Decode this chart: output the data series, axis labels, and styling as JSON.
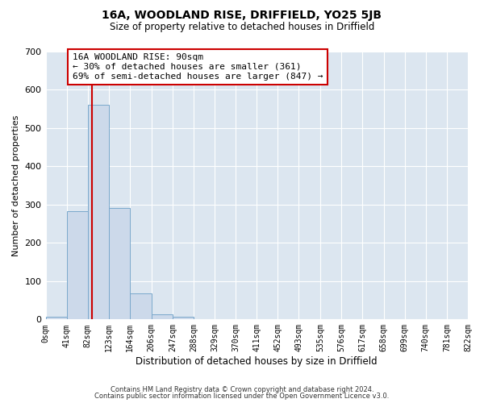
{
  "title": "16A, WOODLAND RISE, DRIFFIELD, YO25 5JB",
  "subtitle": "Size of property relative to detached houses in Driffield",
  "xlabel": "Distribution of detached houses by size in Driffield",
  "ylabel": "Number of detached properties",
  "bin_edges": [
    0,
    41,
    82,
    123,
    164,
    206,
    247,
    288,
    329,
    370,
    411,
    452,
    493,
    535,
    576,
    617,
    658,
    699,
    740,
    781,
    822
  ],
  "bar_heights": [
    8,
    282,
    560,
    292,
    68,
    14,
    8,
    0,
    0,
    0,
    0,
    0,
    0,
    0,
    0,
    0,
    0,
    0,
    0,
    0
  ],
  "bar_color": "#ccd9ea",
  "bar_edge_color": "#7aa8cc",
  "property_line_x": 90,
  "property_line_color": "#cc0000",
  "annotation_text": "16A WOODLAND RISE: 90sqm\n← 30% of detached houses are smaller (361)\n69% of semi-detached houses are larger (847) →",
  "annotation_box_color": "#ffffff",
  "annotation_box_edge_color": "#cc0000",
  "ylim": [
    0,
    700
  ],
  "yticks": [
    0,
    100,
    200,
    300,
    400,
    500,
    600,
    700
  ],
  "figure_background_color": "#ffffff",
  "plot_background_color": "#dce6f0",
  "grid_color": "#ffffff",
  "footer_line1": "Contains HM Land Registry data © Crown copyright and database right 2024.",
  "footer_line2": "Contains public sector information licensed under the Open Government Licence v3.0.",
  "tick_labels": [
    "0sqm",
    "41sqm",
    "82sqm",
    "123sqm",
    "164sqm",
    "206sqm",
    "247sqm",
    "288sqm",
    "329sqm",
    "370sqm",
    "411sqm",
    "452sqm",
    "493sqm",
    "535sqm",
    "576sqm",
    "617sqm",
    "658sqm",
    "699sqm",
    "740sqm",
    "781sqm",
    "822sqm"
  ]
}
